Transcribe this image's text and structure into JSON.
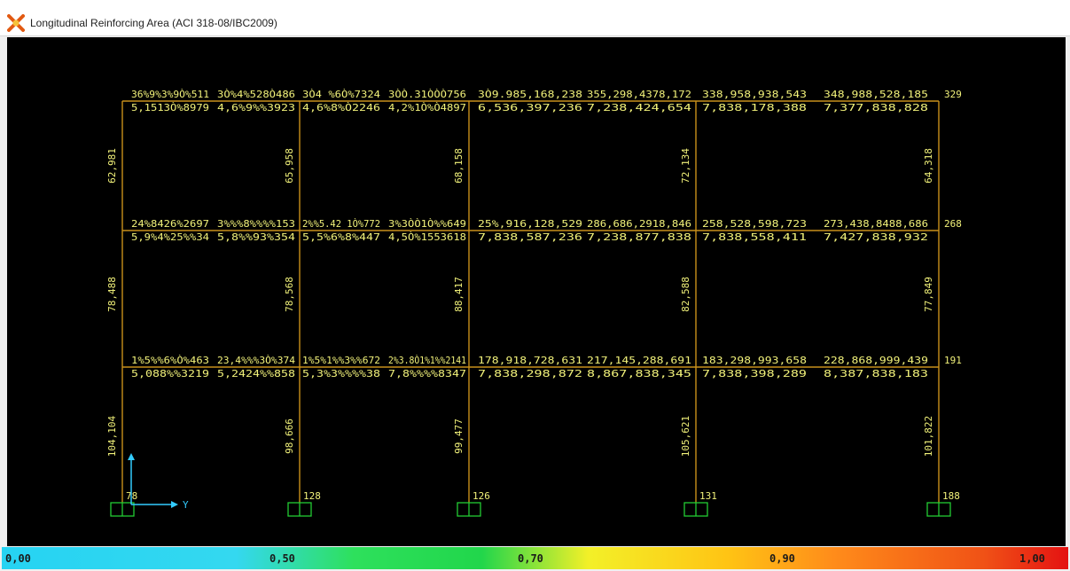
{
  "window": {
    "title": "Longitudinal Reinforcing Area  (ACI 318-08/IBC2009)"
  },
  "colors": {
    "background": "#000000",
    "frame": "#c8901a",
    "text": "#f2f27a",
    "support": "#22cc33",
    "axis": "#33ccff"
  },
  "axis": {
    "y_label": "Y"
  },
  "beams": {
    "top": {
      "top_row": [
        "36%9%3%9Ò%511",
        "3Ò%4%528Ò486",
        "3Ò4 %6Ò%7324",
        "3ÒÒ.31ÒÒÒ756",
        "3Ò9.985,168,238",
        "355,298,4378,172",
        "338,958,938,543",
        "348,988,528,185"
      ],
      "bottom_row": [
        "5,1513Ò%8979",
        "4,6%9%%3923",
        "4,6%8%Ò2246",
        "4,2%1Ò%Ò4897",
        "6,536,397,236",
        "7,238,424,654",
        "7,838,178,388",
        "7,377,838,828"
      ],
      "end_value": "329"
    },
    "middle": {
      "top_row": [
        "24%8426%2697",
        "3%%%8%%%%153",
        "2%%5.42 1Ò%772",
        "3%3ÒÒ1Ò%%649",
        "25%,916,128,529",
        "286,686,2918,846",
        "258,528,598,723",
        "273,438,8488,686"
      ],
      "bottom_row": [
        "5,9%4%25%%34",
        "5,8%%93%354",
        "5,5%6%8%447",
        "4,5Ò%1553618",
        "7,838,587,236",
        "7,238,877,838",
        "7,838,558,411",
        "7,427,838,932"
      ],
      "end_value": "268"
    },
    "bottom": {
      "top_row": [
        "1%5%%6%Ò%463",
        "23,4%%%3Ò%374",
        "1%5%1%%3%%672",
        "2%3.8Ò1%1%%2141",
        "178,918,728,631",
        "217,145,288,691",
        "183,298,993,658",
        "228,868,999,439"
      ],
      "bottom_row": [
        "5,088%%3219",
        "5,2424%%858",
        "5,3%3%%%%38",
        "7,8%%%%8347",
        "7,838,298,872",
        "8,867,838,345",
        "7,838,398,289",
        "8,387,838,183"
      ],
      "end_value": "191"
    }
  },
  "columns": {
    "upper": [
      "62,981",
      "65,958",
      "68,158",
      "72,134",
      "64,318"
    ],
    "middle": [
      "78,488",
      "78,568",
      "88,417",
      "82,588",
      "77,849"
    ],
    "lower": [
      "104,104",
      "98,666",
      "99,477",
      "105,621",
      "101,822"
    ],
    "base": [
      "78",
      "128",
      "126",
      "131",
      "188"
    ]
  },
  "scale": {
    "labels": [
      "0,00",
      "0,50",
      "0,70",
      "0,90",
      "1,00"
    ]
  }
}
